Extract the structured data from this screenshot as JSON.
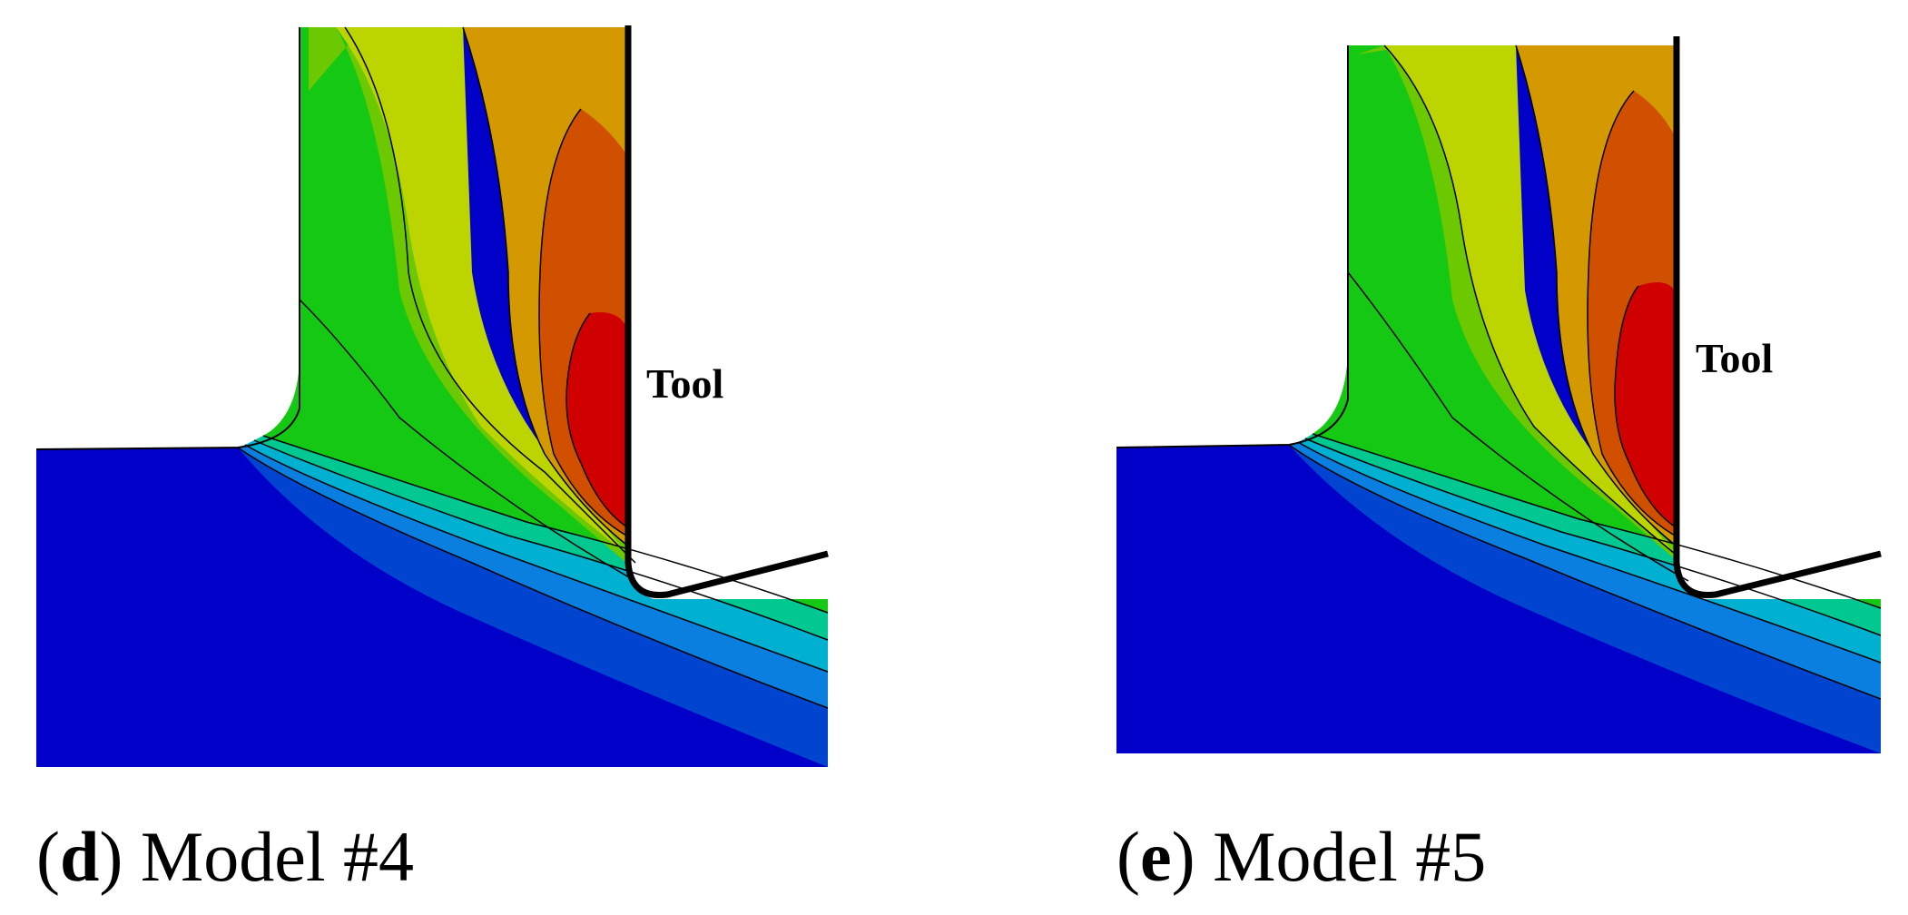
{
  "panels": [
    {
      "letter": "d",
      "caption": "Model #4",
      "tool_label": "Tool"
    },
    {
      "letter": "e",
      "caption": "Model #5",
      "tool_label": "Tool"
    }
  ],
  "colors": {
    "workpiece": "#0000c8",
    "band_1": "#0044d0",
    "band_2": "#0a7fe0",
    "band_3": "#00b0d0",
    "band_4": "#00c890",
    "band_5": "#14c814",
    "band_6": "#6cc800",
    "band_7": "#bcd400",
    "band_8": "#d49800",
    "band_9": "#d05000",
    "band_10": "#d00000",
    "tool": "#000000"
  }
}
